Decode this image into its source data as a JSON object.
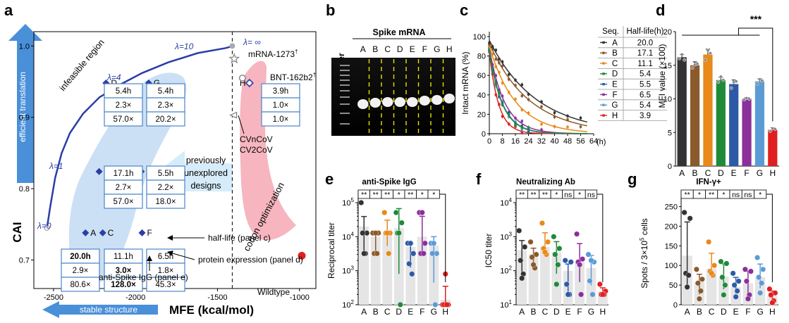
{
  "colors": {
    "A": "#333333",
    "B": "#8b5a2b",
    "C": "#e8891a",
    "D": "#1f8a3a",
    "E": "#2d5aa6",
    "F": "#8b2f9a",
    "G": "#5b9bd5",
    "H": "#e02020",
    "curve": "#2b3da8",
    "box": "#4a86c8",
    "arrow": "#4a90d9",
    "pink": "#f4a8b4",
    "shade": "#a8ccec",
    "bar_bg": "#e5e5e5"
  },
  "panels": {
    "a": "a",
    "b": "b",
    "c": "c",
    "d": "d",
    "e": "e",
    "f": "f",
    "g": "g"
  },
  "panel_a": {
    "ylabel": "CAI",
    "xlabel": "MFE (kcal/mol)",
    "arrow_up_label": "efficient translation",
    "arrow_left_label": "stable structure",
    "infeasible": "infeasible region",
    "lambda_labels": [
      "λ=0",
      "λ=1",
      "λ=4",
      "λ=10",
      "λ= ∞"
    ],
    "mrna1273": "mRNA-1273",
    "bnt": "BNT-162b2",
    "dagger": "†",
    "cvn": "CVnCoV",
    "cv2": "CV2CoV",
    "codon_opt": "codon optimization",
    "prev_unexplored": [
      "previously",
      "unexplored",
      "designs"
    ],
    "wildtype": "Wildtype",
    "ann_half": "half-life (panel c)",
    "ann_protein": "protein expression (panel d)",
    "ann_igg": "anti-Spike IgG (panel e)",
    "x_ticks": [
      "-2500",
      "-2000",
      "-1500",
      "-1000"
    ],
    "y_ticks": [
      "0.7",
      "0.8",
      "0.9",
      "1.0"
    ],
    "designs": [
      {
        "id": "A",
        "box": [
          "20.0h",
          "2.9×",
          "80.6×"
        ],
        "bold": [
          true,
          false,
          false
        ]
      },
      {
        "id": "C",
        "box": [
          "11.1h",
          "3.0×",
          "128.0×"
        ],
        "bold": [
          false,
          true,
          true
        ]
      },
      {
        "id": "F",
        "box": [
          "6.5h",
          "1.8×",
          "45.3×"
        ],
        "bold": [
          false,
          false,
          false
        ]
      },
      {
        "id": "B",
        "box": [
          "17.1h",
          "2.7×",
          "57.0×"
        ],
        "bold": [
          false,
          false,
          false
        ]
      },
      {
        "id": "E",
        "box": [
          "5.5h",
          "2.2×",
          "18.0×"
        ],
        "bold": [
          false,
          false,
          false
        ]
      },
      {
        "id": "D",
        "box": [
          "5.4h",
          "2.3×",
          "57.0×"
        ],
        "bold": [
          false,
          false,
          false
        ]
      },
      {
        "id": "G",
        "box": [
          "5.4h",
          "2.3×",
          "20.2×"
        ],
        "bold": [
          false,
          false,
          false
        ]
      },
      {
        "id": "H",
        "box": [
          "3.9h",
          "1.0×",
          "1.0×"
        ],
        "bold": [
          false,
          false,
          false
        ]
      }
    ]
  },
  "panel_b": {
    "title": "Spike mRNA",
    "marker": "Marker",
    "lanes": [
      "A",
      "B",
      "C",
      "D",
      "E",
      "F",
      "G",
      "H"
    ]
  },
  "panel_c": {
    "ylabel": "Intact mRNA (%)",
    "x_unit": "(h)",
    "x_ticks": [
      "0",
      "8",
      "16",
      "24",
      "32",
      "40",
      "48",
      "56",
      "64"
    ],
    "y_ticks": [
      "0",
      "20",
      "40",
      "60",
      "80",
      "100"
    ],
    "table_headers": [
      "Seq.",
      "Half-life(h)"
    ],
    "table": [
      {
        "id": "A",
        "hl": "20.0"
      },
      {
        "id": "B",
        "hl": "17.1"
      },
      {
        "id": "C",
        "hl": "11.1"
      },
      {
        "id": "D",
        "hl": "5.4"
      },
      {
        "id": "E",
        "hl": "5.5"
      },
      {
        "id": "F",
        "hl": "6.5"
      },
      {
        "id": "G",
        "hl": "5.4"
      },
      {
        "id": "H",
        "hl": "3.9"
      }
    ]
  },
  "panel_d": {
    "ylabel": "MFI value (×100)",
    "y_ticks": [
      "0",
      "5",
      "10",
      "15",
      "20"
    ],
    "sig": "***",
    "categories": [
      "A",
      "B",
      "C",
      "D",
      "E",
      "F",
      "G",
      "H"
    ]
  },
  "panel_e": {
    "title": "anti-Spike IgG",
    "ylabel": "Reciprocal titer",
    "sig": [
      "**",
      "**",
      "**",
      "*",
      "**",
      "*",
      "*"
    ],
    "categories": [
      "A",
      "B",
      "C",
      "D",
      "E",
      "F",
      "G",
      "H"
    ]
  },
  "panel_f": {
    "title": "Neutralizing Ab",
    "ylabel": "IC50 titer",
    "sig": [
      "**",
      "**",
      "**",
      "*",
      "ns",
      "*",
      "ns"
    ],
    "categories": [
      "A",
      "B",
      "C",
      "D",
      "E",
      "F",
      "G",
      "H"
    ]
  },
  "panel_g": {
    "title": "IFN-γ+",
    "ylabel": "Spots / 3×10",
    "ylabel_sup": "5",
    "ylabel_tail": " cells",
    "y_ticks": [
      "0",
      "50",
      "100",
      "150",
      "200",
      "250"
    ],
    "sig": [
      "**",
      "*",
      "**",
      "*",
      "ns",
      "ns",
      "*"
    ],
    "categories": [
      "A",
      "B",
      "C",
      "D",
      "E",
      "F",
      "G",
      "H"
    ]
  },
  "chart_data": [
    {
      "type": "scatter",
      "panel": "a",
      "title": "",
      "xlabel": "MFE (kcal/mol)",
      "ylabel": "CAI",
      "xlim": [
        -2620,
        -900
      ],
      "ylim": [
        0.66,
        1.02
      ],
      "boundary_curve": {
        "x": [
          -2540,
          -2520,
          -2490,
          -2450,
          -2400,
          -2320,
          -2220,
          -2100,
          -1960,
          -1800,
          -1620,
          -1450,
          -1420,
          -1410
        ],
        "y": [
          0.745,
          0.775,
          0.815,
          0.85,
          0.878,
          0.905,
          0.928,
          0.945,
          0.962,
          0.977,
          0.99,
          0.997,
          0.999,
          1.0
        ]
      },
      "wildtype_line_x": -1410,
      "points": [
        {
          "label": "A",
          "x": -2305,
          "y": 0.738
        },
        {
          "label": "C",
          "x": -2200,
          "y": 0.738
        },
        {
          "label": "B",
          "x": -2222,
          "y": 0.824
        },
        {
          "label": "D",
          "x": -2180,
          "y": 0.948
        },
        {
          "label": "G",
          "x": -1920,
          "y": 0.948
        },
        {
          "label": "E",
          "x": -1965,
          "y": 0.824
        },
        {
          "label": "F",
          "x": -1960,
          "y": 0.738
        },
        {
          "label": "H",
          "x": -1305,
          "y": 0.948
        },
        {
          "label": "BNT-162b2",
          "x": -1348,
          "y": 0.955
        },
        {
          "label": "mRNA-1273",
          "x": -1398,
          "y": 0.982
        },
        {
          "label": "CVnCoV/CV2CoV",
          "x": -1405,
          "y": 0.903
        },
        {
          "label": "Wildtype",
          "x": -986,
          "y": 0.706
        }
      ]
    },
    {
      "type": "line",
      "panel": "c",
      "xlabel": "(h)",
      "ylabel": "Intact mRNA (%)",
      "xlim": [
        0,
        64
      ],
      "ylim": [
        0,
        105
      ],
      "half_lives": {
        "A": 20.0,
        "B": 17.1,
        "C": 11.1,
        "D": 5.4,
        "E": 5.5,
        "F": 6.5,
        "G": 5.4,
        "H": 3.9
      },
      "start": {
        "A": 96,
        "B": 93,
        "C": 90,
        "D": 86,
        "E": 86,
        "F": 88,
        "G": 86,
        "H": 84
      },
      "sample_times": [
        0,
        2,
        4,
        6,
        8,
        12,
        16,
        20,
        24,
        32,
        40,
        48,
        56
      ]
    },
    {
      "type": "bar",
      "panel": "d",
      "ylabel": "MFI value (×100)",
      "categories": [
        "A",
        "B",
        "C",
        "D",
        "E",
        "F",
        "G",
        "H"
      ],
      "values": [
        16.2,
        15.0,
        16.6,
        12.8,
        12.2,
        10.0,
        12.6,
        5.4
      ],
      "errors": [
        0.4,
        0.5,
        0.8,
        0.4,
        0.6,
        0.2,
        0.4,
        0.3
      ],
      "points": [
        [
          16.0,
          16.6,
          15.8
        ],
        [
          14.6,
          15.1,
          15.2
        ],
        [
          15.8,
          17.2,
          16.8
        ],
        [
          12.5,
          13.3,
          12.8
        ],
        [
          11.6,
          12.5,
          12.6
        ],
        [
          9.9,
          10.1,
          10.0
        ],
        [
          12.2,
          12.9,
          12.7
        ],
        [
          5.2,
          5.6,
          5.5
        ]
      ],
      "ylim": [
        0,
        20
      ]
    },
    {
      "type": "bar",
      "panel": "e",
      "scale": "log",
      "ylabel": "Reciprocal titer",
      "categories": [
        "A",
        "B",
        "C",
        "D",
        "E",
        "F",
        "G",
        "H"
      ],
      "values": [
        20000,
        10000,
        13000,
        18000,
        5000,
        10000,
        5500,
        140
      ],
      "points": [
        [
          100000,
          12800,
          12800,
          3200,
          3200
        ],
        [
          12800,
          12800,
          3200,
          3200,
          12800
        ],
        [
          51200,
          12800,
          12800,
          3200,
          12800
        ],
        [
          51200,
          25600,
          12800,
          100,
          12800
        ],
        [
          6400,
          3200,
          1600,
          800,
          6400
        ],
        [
          51200,
          6400,
          3200,
          3200,
          51200
        ],
        [
          6400,
          3200,
          3200,
          100,
          6400
        ],
        [
          100,
          100,
          100,
          100,
          800
        ]
      ],
      "ylim": [
        100,
        100000
      ]
    },
    {
      "type": "bar",
      "panel": "f",
      "scale": "log",
      "ylabel": "IC50 titer",
      "categories": [
        "A",
        "B",
        "C",
        "D",
        "E",
        "F",
        "G",
        "H"
      ],
      "values": [
        400,
        300,
        500,
        350,
        100,
        180,
        120,
        25
      ],
      "points": [
        [
          1500,
          500,
          200,
          80,
          60
        ],
        [
          700,
          300,
          250,
          120,
          150
        ],
        [
          2500,
          700,
          450,
          300,
          350
        ],
        [
          1000,
          450,
          300,
          150,
          40
        ],
        [
          200,
          180,
          40,
          20,
          20
        ],
        [
          1200,
          220,
          180,
          20,
          150
        ],
        [
          300,
          180,
          50,
          20,
          200
        ],
        [
          40,
          25,
          20,
          20,
          20
        ]
      ],
      "ylim": [
        10,
        10000
      ]
    },
    {
      "type": "bar",
      "panel": "g",
      "ylabel": "Spots / 3×10^5 cells",
      "categories": [
        "A",
        "B",
        "C",
        "D",
        "E",
        "F",
        "G",
        "H"
      ],
      "values": [
        125,
        58,
        92,
        72,
        45,
        55,
        70,
        22
      ],
      "errors": [
        40,
        22,
        18,
        22,
        12,
        22,
        18,
        14
      ],
      "points": [
        [
          235,
          220,
          80,
          75,
          45
        ],
        [
          90,
          65,
          55,
          35,
          15
        ],
        [
          160,
          100,
          85,
          75,
          80
        ],
        [
          110,
          105,
          70,
          50,
          25
        ],
        [
          80,
          60,
          50,
          35,
          20
        ],
        [
          90,
          85,
          60,
          25,
          15
        ],
        [
          120,
          90,
          70,
          55,
          30
        ],
        [
          40,
          30,
          25,
          10,
          5
        ]
      ],
      "ylim": [
        0,
        260
      ]
    }
  ]
}
